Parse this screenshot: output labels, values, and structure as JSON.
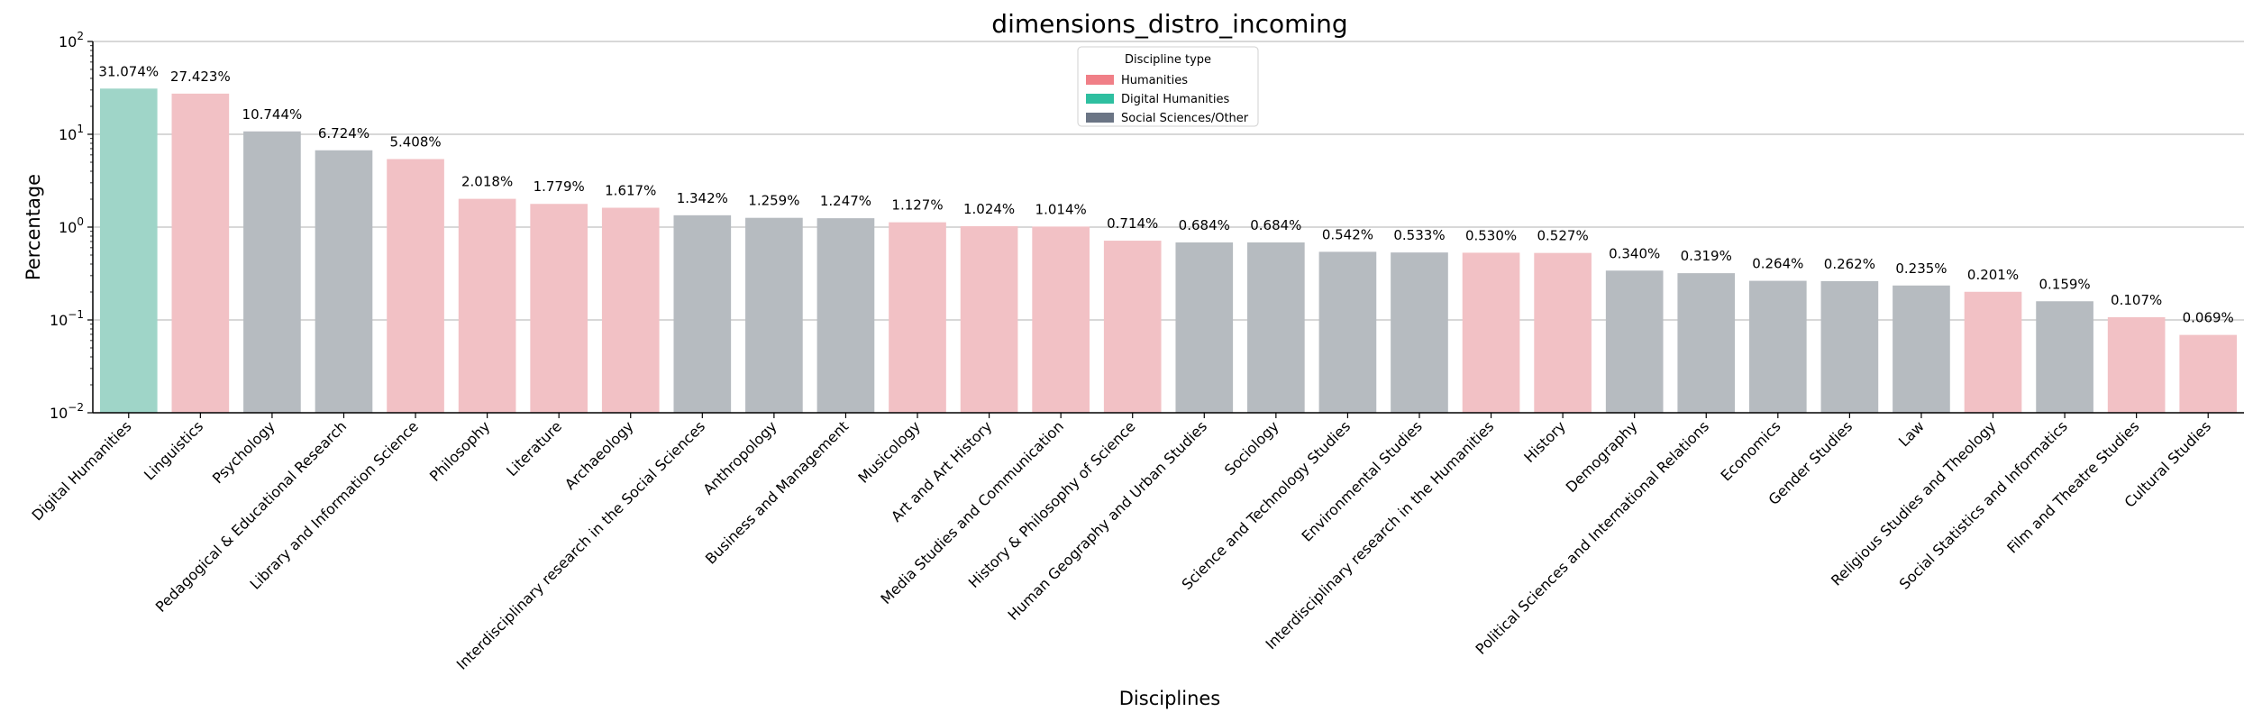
{
  "chart_data": {
    "type": "bar",
    "title": "dimensions_distro_incoming",
    "xlabel": "Disciplines",
    "ylabel": "Percentage",
    "y_scale": "log",
    "ylim": [
      0.01,
      100
    ],
    "y_ticks": [
      {
        "value": 0.01,
        "base": "10",
        "exp": "−2"
      },
      {
        "value": 0.1,
        "base": "10",
        "exp": "−1"
      },
      {
        "value": 1,
        "base": "10",
        "exp": "0"
      },
      {
        "value": 10,
        "base": "10",
        "exp": "1"
      },
      {
        "value": 100,
        "base": "10",
        "exp": "2"
      }
    ],
    "grid": "horizontal",
    "legend": {
      "title": "Discipline type",
      "placement": "top-center",
      "entries": [
        {
          "label": "Humanities",
          "color": "#f07f87"
        },
        {
          "label": "Digital Humanities",
          "color": "#2ebfa0"
        },
        {
          "label": "Social Sciences/Other",
          "color": "#6b7585"
        }
      ]
    },
    "type_colors": {
      "Humanities": "#f2c1c5",
      "Digital Humanities": "#9fd5c8",
      "Social Sciences/Other": "#b6bbc0"
    },
    "categories": [
      "Digital Humanities",
      "Linguistics",
      "Psychology",
      "Pedagogical & Educational Research",
      "Library and Information Science",
      "Philosophy",
      "Literature",
      "Archaeology",
      "Interdisciplinary research in the Social Sciences",
      "Anthropology",
      "Business and Management",
      "Musicology",
      "Art and Art History",
      "Media Studies and Communication",
      "History & Philosophy of Science",
      "Human Geography and Urban Studies",
      "Sociology",
      "Science and Technology Studies",
      "Environmental Studies",
      "Interdisciplinary research in the Humanities",
      "History",
      "Demography",
      "Political Sciences and International Relations",
      "Economics",
      "Gender Studies",
      "Law",
      "Religious Studies and Theology",
      "Social Statistics and Informatics",
      "Film and Theatre Studies",
      "Cultural Studies"
    ],
    "values": [
      31.074,
      27.423,
      10.744,
      6.724,
      5.408,
      2.018,
      1.779,
      1.617,
      1.342,
      1.259,
      1.247,
      1.127,
      1.024,
      1.014,
      0.714,
      0.684,
      0.684,
      0.542,
      0.533,
      0.53,
      0.527,
      0.34,
      0.319,
      0.264,
      0.262,
      0.235,
      0.201,
      0.159,
      0.107,
      0.069
    ],
    "value_labels": [
      "31.074%",
      "27.423%",
      "10.744%",
      "6.724%",
      "5.408%",
      "2.018%",
      "1.779%",
      "1.617%",
      "1.342%",
      "1.259%",
      "1.247%",
      "1.127%",
      "1.024%",
      "1.014%",
      "0.714%",
      "0.684%",
      "0.684%",
      "0.542%",
      "0.533%",
      "0.530%",
      "0.527%",
      "0.340%",
      "0.319%",
      "0.264%",
      "0.262%",
      "0.235%",
      "0.201%",
      "0.159%",
      "0.107%",
      "0.069%"
    ],
    "types": [
      "Digital Humanities",
      "Humanities",
      "Social Sciences/Other",
      "Social Sciences/Other",
      "Humanities",
      "Humanities",
      "Humanities",
      "Humanities",
      "Social Sciences/Other",
      "Social Sciences/Other",
      "Social Sciences/Other",
      "Humanities",
      "Humanities",
      "Humanities",
      "Humanities",
      "Social Sciences/Other",
      "Social Sciences/Other",
      "Social Sciences/Other",
      "Social Sciences/Other",
      "Humanities",
      "Humanities",
      "Social Sciences/Other",
      "Social Sciences/Other",
      "Social Sciences/Other",
      "Social Sciences/Other",
      "Social Sciences/Other",
      "Humanities",
      "Social Sciences/Other",
      "Humanities",
      "Humanities"
    ]
  }
}
